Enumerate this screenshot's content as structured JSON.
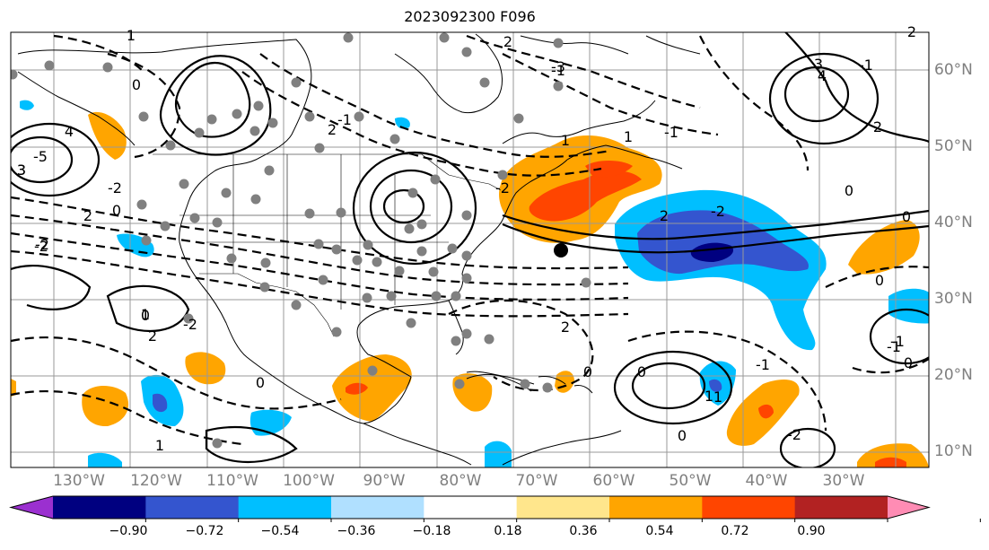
{
  "title": "2023092300 F096",
  "lat_labels": [
    "60°N",
    "50°N",
    "40°N",
    "30°N",
    "20°N",
    "10°N"
  ],
  "lon_labels": [
    "130°W",
    "120°W",
    "110°W",
    "100°W",
    "90°W",
    "80°W",
    "70°W",
    "60°W",
    "50°W",
    "40°W",
    "30°W"
  ],
  "colorbar": {
    "colors": [
      "#9b30d0",
      "#000080",
      "#3455cf",
      "#00bfff",
      "#b0e0ff",
      "#ffffff",
      "#ffe68c",
      "#ffa500",
      "#ff4500",
      "#b22222",
      "#ff8cb4"
    ],
    "tick_labels": [
      "−0.90",
      "−0.72",
      "−0.54",
      "−0.36",
      "−0.18",
      "0.18",
      "0.36",
      "0.54",
      "0.72",
      "0.90"
    ]
  },
  "contour_labels": [
    "1",
    "2",
    "0",
    "-2",
    "-1",
    "2",
    "-3",
    "3",
    "4",
    "3",
    "-2",
    "4",
    "-5",
    "3",
    "0",
    "2",
    "-2",
    "-1",
    "-1",
    "1",
    "1",
    "2",
    "-2",
    "2",
    "0",
    "-2",
    "0",
    "-2",
    "2",
    "1",
    "0",
    "2",
    "0",
    "1",
    "0",
    "0",
    "-1",
    "1",
    "-1",
    "0",
    "1",
    "0",
    "-1",
    "-2",
    "0",
    "-1",
    "2"
  ],
  "legend_note": ""
}
